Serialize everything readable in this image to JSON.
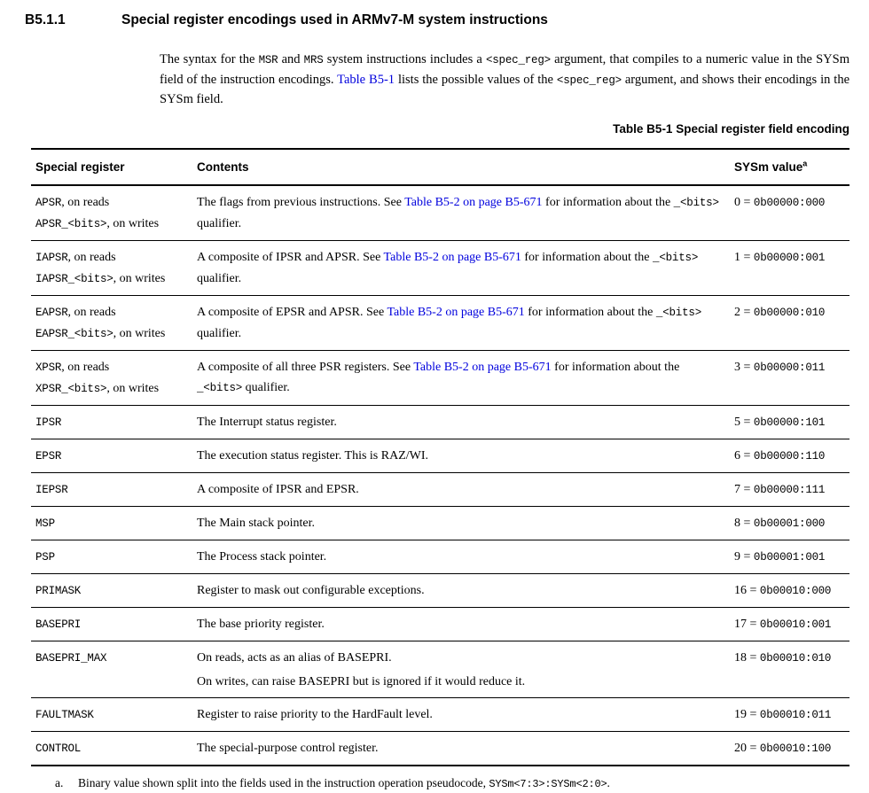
{
  "page": {
    "section_number": "B5.1.1",
    "section_title": "Special register encodings used in ARMv7-M system instructions"
  },
  "intro": {
    "segments": [
      {
        "kind": "plain",
        "text": "The syntax for the "
      },
      {
        "kind": "mono",
        "text": "MSR"
      },
      {
        "kind": "plain",
        "text": " and "
      },
      {
        "kind": "mono",
        "text": "MRS"
      },
      {
        "kind": "plain",
        "text": " system instructions includes a "
      },
      {
        "kind": "mono",
        "text": "<spec_reg>"
      },
      {
        "kind": "plain",
        "text": " argument, that compiles to a numeric value in the SYSm field of the instruction encodings. "
      },
      {
        "kind": "link",
        "text": "Table B5-1"
      },
      {
        "kind": "plain",
        "text": " lists the possible values of the "
      },
      {
        "kind": "mono",
        "text": "<spec_reg>"
      },
      {
        "kind": "plain",
        "text": " argument, and shows their encodings in the SYSm field."
      }
    ]
  },
  "caption": "Table B5-1 Special register field encoding",
  "table": {
    "headers": {
      "register": "Special register",
      "contents": "Contents",
      "sysm": "SYSm value",
      "sysm_note_ref": "a"
    },
    "rows": [
      {
        "register_lines": [
          [
            {
              "kind": "mono",
              "text": "APSR"
            },
            {
              "kind": "plain",
              "text": ", on reads"
            }
          ],
          [
            {
              "kind": "mono",
              "text": "APSR_<bits>"
            },
            {
              "kind": "plain",
              "text": ", on writes"
            }
          ]
        ],
        "contents_paragraphs": [
          [
            {
              "kind": "plain",
              "text": "The flags from previous instructions. See "
            },
            {
              "kind": "link",
              "text": "Table B5-2 on page B5-671"
            },
            {
              "kind": "plain",
              "text": " for information about the "
            },
            {
              "kind": "mono",
              "text": "_<bits>"
            },
            {
              "kind": "plain",
              "text": " qualifier."
            }
          ]
        ],
        "value": [
          {
            "kind": "plain",
            "text": "0 = "
          },
          {
            "kind": "mono",
            "text": "0b00000:000"
          }
        ]
      },
      {
        "register_lines": [
          [
            {
              "kind": "mono",
              "text": "IAPSR"
            },
            {
              "kind": "plain",
              "text": ", on reads"
            }
          ],
          [
            {
              "kind": "mono",
              "text": "IAPSR_<bits>"
            },
            {
              "kind": "plain",
              "text": ", on writes"
            }
          ]
        ],
        "contents_paragraphs": [
          [
            {
              "kind": "plain",
              "text": "A composite of IPSR and APSR. See "
            },
            {
              "kind": "link",
              "text": "Table B5-2 on page B5-671"
            },
            {
              "kind": "plain",
              "text": " for information about the "
            },
            {
              "kind": "mono",
              "text": "_<bits>"
            },
            {
              "kind": "plain",
              "text": " qualifier."
            }
          ]
        ],
        "value": [
          {
            "kind": "plain",
            "text": "1 = "
          },
          {
            "kind": "mono",
            "text": "0b00000:001"
          }
        ]
      },
      {
        "register_lines": [
          [
            {
              "kind": "mono",
              "text": "EAPSR"
            },
            {
              "kind": "plain",
              "text": ", on reads"
            }
          ],
          [
            {
              "kind": "mono",
              "text": "EAPSR_<bits>"
            },
            {
              "kind": "plain",
              "text": ", on writes"
            }
          ]
        ],
        "contents_paragraphs": [
          [
            {
              "kind": "plain",
              "text": "A composite of EPSR and APSR. See "
            },
            {
              "kind": "link",
              "text": "Table B5-2 on page B5-671"
            },
            {
              "kind": "plain",
              "text": " for information about the "
            },
            {
              "kind": "mono",
              "text": "_<bits>"
            },
            {
              "kind": "plain",
              "text": " qualifier."
            }
          ]
        ],
        "value": [
          {
            "kind": "plain",
            "text": "2 = "
          },
          {
            "kind": "mono",
            "text": "0b00000:010"
          }
        ]
      },
      {
        "register_lines": [
          [
            {
              "kind": "mono",
              "text": "XPSR"
            },
            {
              "kind": "plain",
              "text": ", on reads"
            }
          ],
          [
            {
              "kind": "mono",
              "text": "XPSR_<bits>"
            },
            {
              "kind": "plain",
              "text": ", on writes"
            }
          ]
        ],
        "contents_paragraphs": [
          [
            {
              "kind": "plain",
              "text": "A composite of all three PSR registers. See "
            },
            {
              "kind": "link",
              "text": "Table B5-2 on page B5-671"
            },
            {
              "kind": "plain",
              "text": " for information about the "
            },
            {
              "kind": "mono",
              "text": "_<bits>"
            },
            {
              "kind": "plain",
              "text": " qualifier."
            }
          ]
        ],
        "value": [
          {
            "kind": "plain",
            "text": "3 = "
          },
          {
            "kind": "mono",
            "text": "0b00000:011"
          }
        ]
      },
      {
        "register_lines": [
          [
            {
              "kind": "mono",
              "text": "IPSR"
            }
          ]
        ],
        "contents_paragraphs": [
          [
            {
              "kind": "plain",
              "text": "The Interrupt status register."
            }
          ]
        ],
        "value": [
          {
            "kind": "plain",
            "text": "5 = "
          },
          {
            "kind": "mono",
            "text": "0b00000:101"
          }
        ]
      },
      {
        "register_lines": [
          [
            {
              "kind": "mono",
              "text": "EPSR"
            }
          ]
        ],
        "contents_paragraphs": [
          [
            {
              "kind": "plain",
              "text": "The execution status register. This is RAZ/WI."
            }
          ]
        ],
        "value": [
          {
            "kind": "plain",
            "text": "6 = "
          },
          {
            "kind": "mono",
            "text": "0b00000:110"
          }
        ]
      },
      {
        "register_lines": [
          [
            {
              "kind": "mono",
              "text": "IEPSR"
            }
          ]
        ],
        "contents_paragraphs": [
          [
            {
              "kind": "plain",
              "text": "A composite of IPSR and EPSR."
            }
          ]
        ],
        "value": [
          {
            "kind": "plain",
            "text": "7 = "
          },
          {
            "kind": "mono",
            "text": "0b00000:111"
          }
        ]
      },
      {
        "register_lines": [
          [
            {
              "kind": "mono",
              "text": "MSP"
            }
          ]
        ],
        "contents_paragraphs": [
          [
            {
              "kind": "plain",
              "text": "The Main stack pointer."
            }
          ]
        ],
        "value": [
          {
            "kind": "plain",
            "text": "8 = "
          },
          {
            "kind": "mono",
            "text": "0b00001:000"
          }
        ]
      },
      {
        "register_lines": [
          [
            {
              "kind": "mono",
              "text": "PSP"
            }
          ]
        ],
        "contents_paragraphs": [
          [
            {
              "kind": "plain",
              "text": "The Process stack pointer."
            }
          ]
        ],
        "value": [
          {
            "kind": "plain",
            "text": "9 = "
          },
          {
            "kind": "mono",
            "text": "0b00001:001"
          }
        ]
      },
      {
        "register_lines": [
          [
            {
              "kind": "mono",
              "text": "PRIMASK"
            }
          ]
        ],
        "contents_paragraphs": [
          [
            {
              "kind": "plain",
              "text": "Register to mask out configurable exceptions."
            }
          ]
        ],
        "value": [
          {
            "kind": "plain",
            "text": "16 = "
          },
          {
            "kind": "mono",
            "text": "0b00010:000"
          }
        ]
      },
      {
        "register_lines": [
          [
            {
              "kind": "mono",
              "text": "BASEPRI"
            }
          ]
        ],
        "contents_paragraphs": [
          [
            {
              "kind": "plain",
              "text": "The base priority register."
            }
          ]
        ],
        "value": [
          {
            "kind": "plain",
            "text": "17 = "
          },
          {
            "kind": "mono",
            "text": "0b00010:001"
          }
        ]
      },
      {
        "register_lines": [
          [
            {
              "kind": "mono",
              "text": "BASEPRI_MAX"
            }
          ]
        ],
        "contents_paragraphs": [
          [
            {
              "kind": "plain",
              "text": "On reads, acts as an alias of BASEPRI."
            }
          ],
          [
            {
              "kind": "plain",
              "text": "On writes, can raise BASEPRI but is ignored if it would reduce it."
            }
          ]
        ],
        "value": [
          {
            "kind": "plain",
            "text": "18 = "
          },
          {
            "kind": "mono",
            "text": "0b00010:010"
          }
        ]
      },
      {
        "register_lines": [
          [
            {
              "kind": "mono",
              "text": "FAULTMASK"
            }
          ]
        ],
        "contents_paragraphs": [
          [
            {
              "kind": "plain",
              "text": "Register to raise priority to the HardFault level."
            }
          ]
        ],
        "value": [
          {
            "kind": "plain",
            "text": "19 = "
          },
          {
            "kind": "mono",
            "text": "0b00010:011"
          }
        ]
      },
      {
        "register_lines": [
          [
            {
              "kind": "mono",
              "text": "CONTROL"
            }
          ]
        ],
        "contents_paragraphs": [
          [
            {
              "kind": "plain",
              "text": "The special-purpose control register."
            }
          ]
        ],
        "value": [
          {
            "kind": "plain",
            "text": "20 = "
          },
          {
            "kind": "mono",
            "text": "0b00010:100"
          }
        ]
      }
    ]
  },
  "footnote": {
    "marker": "a.",
    "segments": [
      {
        "kind": "plain",
        "text": "Binary value shown split into the fields used in the instruction operation pseudocode, "
      },
      {
        "kind": "mono",
        "text": "SYSm<7:3>:SYSm<2:0>"
      },
      {
        "kind": "plain",
        "text": "."
      }
    ]
  },
  "colors": {
    "link_blue": "#0000dd",
    "text": "#000000",
    "background": "#ffffff"
  }
}
